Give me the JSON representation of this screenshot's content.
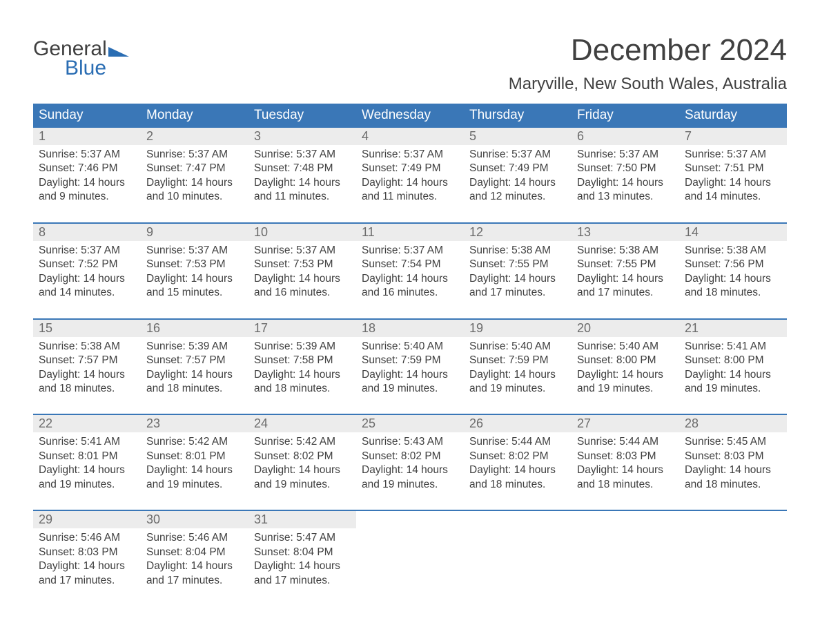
{
  "logo": {
    "line1": "General",
    "line2": "Blue",
    "flag_color": "#2a6db3"
  },
  "title": "December 2024",
  "location": "Maryville, New South Wales, Australia",
  "header_bg": "#3a77b7",
  "daynum_bg": "#ececec",
  "week_border": "#3a77b7",
  "weekdays": [
    "Sunday",
    "Monday",
    "Tuesday",
    "Wednesday",
    "Thursday",
    "Friday",
    "Saturday"
  ],
  "labels": {
    "sunrise": "Sunrise:",
    "sunset": "Sunset:",
    "daylight": "Daylight:"
  },
  "weeks": [
    [
      {
        "n": "1",
        "sr": "5:37 AM",
        "ss": "7:46 PM",
        "dl": "14 hours and 9 minutes."
      },
      {
        "n": "2",
        "sr": "5:37 AM",
        "ss": "7:47 PM",
        "dl": "14 hours and 10 minutes."
      },
      {
        "n": "3",
        "sr": "5:37 AM",
        "ss": "7:48 PM",
        "dl": "14 hours and 11 minutes."
      },
      {
        "n": "4",
        "sr": "5:37 AM",
        "ss": "7:49 PM",
        "dl": "14 hours and 11 minutes."
      },
      {
        "n": "5",
        "sr": "5:37 AM",
        "ss": "7:49 PM",
        "dl": "14 hours and 12 minutes."
      },
      {
        "n": "6",
        "sr": "5:37 AM",
        "ss": "7:50 PM",
        "dl": "14 hours and 13 minutes."
      },
      {
        "n": "7",
        "sr": "5:37 AM",
        "ss": "7:51 PM",
        "dl": "14 hours and 14 minutes."
      }
    ],
    [
      {
        "n": "8",
        "sr": "5:37 AM",
        "ss": "7:52 PM",
        "dl": "14 hours and 14 minutes."
      },
      {
        "n": "9",
        "sr": "5:37 AM",
        "ss": "7:53 PM",
        "dl": "14 hours and 15 minutes."
      },
      {
        "n": "10",
        "sr": "5:37 AM",
        "ss": "7:53 PM",
        "dl": "14 hours and 16 minutes."
      },
      {
        "n": "11",
        "sr": "5:37 AM",
        "ss": "7:54 PM",
        "dl": "14 hours and 16 minutes."
      },
      {
        "n": "12",
        "sr": "5:38 AM",
        "ss": "7:55 PM",
        "dl": "14 hours and 17 minutes."
      },
      {
        "n": "13",
        "sr": "5:38 AM",
        "ss": "7:55 PM",
        "dl": "14 hours and 17 minutes."
      },
      {
        "n": "14",
        "sr": "5:38 AM",
        "ss": "7:56 PM",
        "dl": "14 hours and 18 minutes."
      }
    ],
    [
      {
        "n": "15",
        "sr": "5:38 AM",
        "ss": "7:57 PM",
        "dl": "14 hours and 18 minutes."
      },
      {
        "n": "16",
        "sr": "5:39 AM",
        "ss": "7:57 PM",
        "dl": "14 hours and 18 minutes."
      },
      {
        "n": "17",
        "sr": "5:39 AM",
        "ss": "7:58 PM",
        "dl": "14 hours and 18 minutes."
      },
      {
        "n": "18",
        "sr": "5:40 AM",
        "ss": "7:59 PM",
        "dl": "14 hours and 19 minutes."
      },
      {
        "n": "19",
        "sr": "5:40 AM",
        "ss": "7:59 PM",
        "dl": "14 hours and 19 minutes."
      },
      {
        "n": "20",
        "sr": "5:40 AM",
        "ss": "8:00 PM",
        "dl": "14 hours and 19 minutes."
      },
      {
        "n": "21",
        "sr": "5:41 AM",
        "ss": "8:00 PM",
        "dl": "14 hours and 19 minutes."
      }
    ],
    [
      {
        "n": "22",
        "sr": "5:41 AM",
        "ss": "8:01 PM",
        "dl": "14 hours and 19 minutes."
      },
      {
        "n": "23",
        "sr": "5:42 AM",
        "ss": "8:01 PM",
        "dl": "14 hours and 19 minutes."
      },
      {
        "n": "24",
        "sr": "5:42 AM",
        "ss": "8:02 PM",
        "dl": "14 hours and 19 minutes."
      },
      {
        "n": "25",
        "sr": "5:43 AM",
        "ss": "8:02 PM",
        "dl": "14 hours and 19 minutes."
      },
      {
        "n": "26",
        "sr": "5:44 AM",
        "ss": "8:02 PM",
        "dl": "14 hours and 18 minutes."
      },
      {
        "n": "27",
        "sr": "5:44 AM",
        "ss": "8:03 PM",
        "dl": "14 hours and 18 minutes."
      },
      {
        "n": "28",
        "sr": "5:45 AM",
        "ss": "8:03 PM",
        "dl": "14 hours and 18 minutes."
      }
    ],
    [
      {
        "n": "29",
        "sr": "5:46 AM",
        "ss": "8:03 PM",
        "dl": "14 hours and 17 minutes."
      },
      {
        "n": "30",
        "sr": "5:46 AM",
        "ss": "8:04 PM",
        "dl": "14 hours and 17 minutes."
      },
      {
        "n": "31",
        "sr": "5:47 AM",
        "ss": "8:04 PM",
        "dl": "14 hours and 17 minutes."
      },
      null,
      null,
      null,
      null
    ]
  ]
}
